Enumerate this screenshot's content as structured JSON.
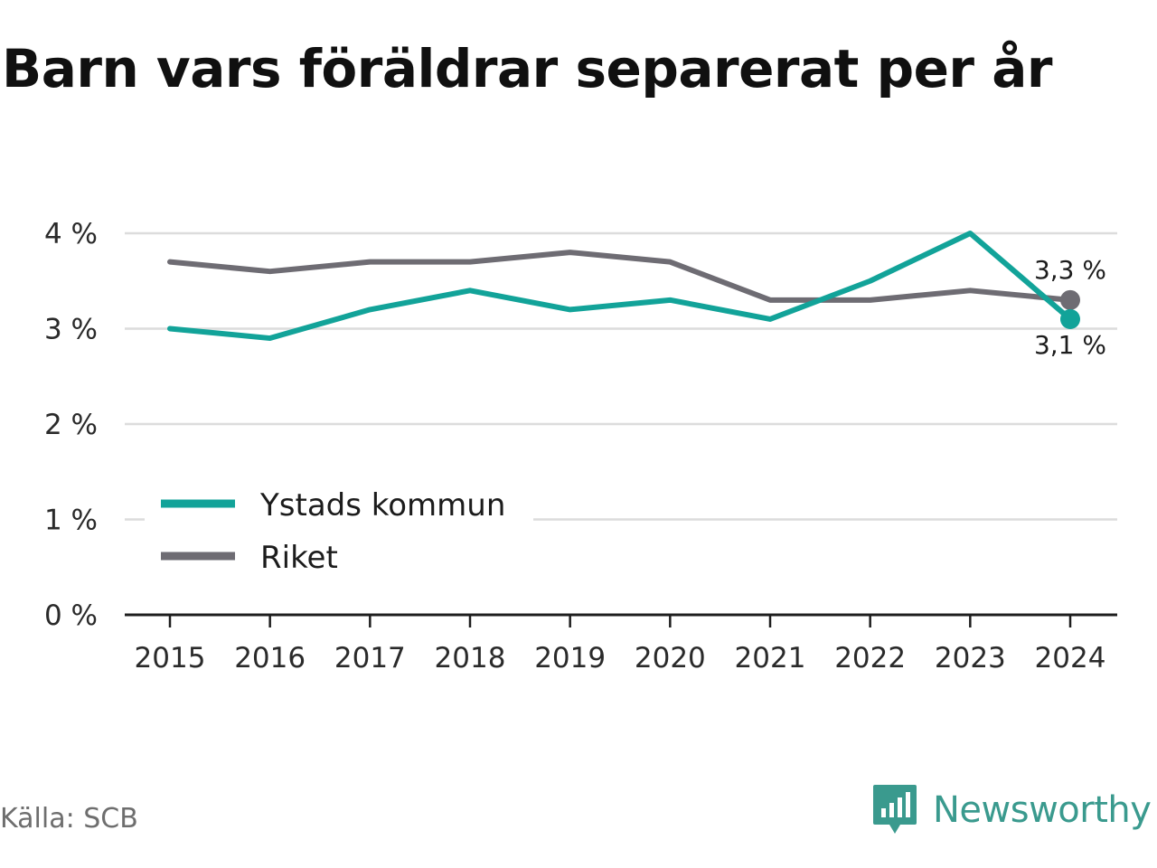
{
  "title": "Barn vars föräldrar separerat per år",
  "source": "Källa: SCB",
  "brand": {
    "name": "Newsworthy",
    "icon": "newsworthy-logo-icon"
  },
  "colors": {
    "ystad": "#12a399",
    "riket": "#6e6c73",
    "grid": "#dcdcdc",
    "axis": "#1e1e1e",
    "brand": "#3a9a8e"
  },
  "chart_data": {
    "type": "line",
    "title": "Barn vars föräldrar separerat per år",
    "x": [
      "2015",
      "2016",
      "2017",
      "2018",
      "2019",
      "2020",
      "2021",
      "2022",
      "2023",
      "2024"
    ],
    "series": [
      {
        "name": "Ystads kommun",
        "values": [
          3.0,
          2.9,
          3.2,
          3.4,
          3.2,
          3.3,
          3.1,
          3.5,
          4.0,
          3.1
        ],
        "end_label": "3,1 %"
      },
      {
        "name": "Riket",
        "values": [
          3.7,
          3.6,
          3.7,
          3.7,
          3.8,
          3.7,
          3.3,
          3.3,
          3.4,
          3.3
        ],
        "end_label": "3,3 %"
      }
    ],
    "yticks": [
      "0 %",
      "1 %",
      "2 %",
      "3 %",
      "4 %"
    ],
    "ylim": [
      0,
      4
    ],
    "grid": true,
    "legend_position": "bottom-left"
  }
}
